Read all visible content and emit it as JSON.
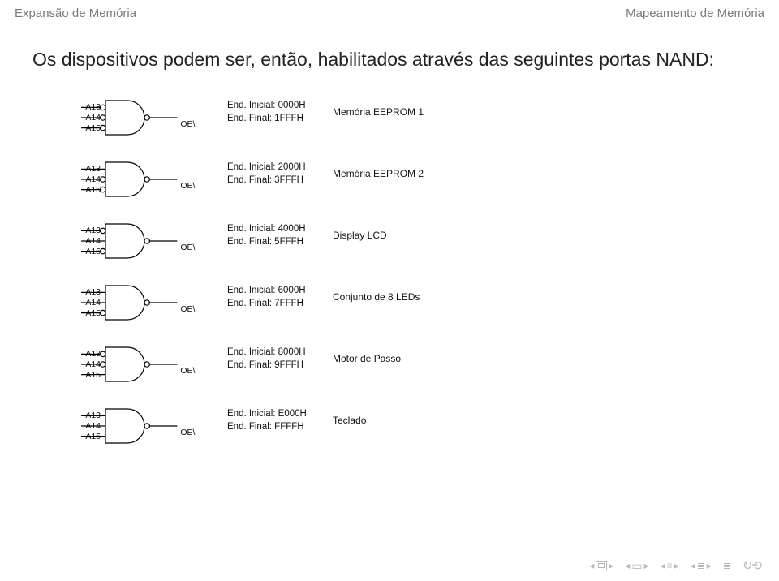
{
  "header": {
    "left": "Expansão de Memória",
    "right": "Mapeamento de Memória",
    "rule_color": "#3b5fa0"
  },
  "intro": "Os dispositivos podem ser, então, habilitados através das seguintes portas NAND:",
  "gate_style": {
    "stroke": "#000000",
    "stroke_width": 1.2,
    "fill": "#ffffff",
    "bubble_radius": 3.2,
    "body_width": 48,
    "body_height": 42,
    "wire_len_in": 30,
    "wire_len_out": 34
  },
  "inputs": [
    "A13",
    "A14",
    "A15"
  ],
  "oe_label": "OE\\",
  "gates": [
    {
      "bubbles": [
        true,
        true,
        true
      ],
      "addr_init": "End. Inicial: 0000H",
      "addr_fin": "End. Final: 1FFFH",
      "name": "Memória EEPROM 1"
    },
    {
      "bubbles": [
        false,
        true,
        true
      ],
      "addr_init": "End. Inicial: 2000H",
      "addr_fin": "End. Final: 3FFFH",
      "name": "Memória EEPROM 2"
    },
    {
      "bubbles": [
        true,
        false,
        true
      ],
      "addr_init": "End. Inicial: 4000H",
      "addr_fin": "End. Final: 5FFFH",
      "name": "Display LCD"
    },
    {
      "bubbles": [
        false,
        false,
        true
      ],
      "addr_init": "End. Inicial: 6000H",
      "addr_fin": "End. Final: 7FFFH",
      "name": "Conjunto de 8 LEDs"
    },
    {
      "bubbles": [
        true,
        true,
        false
      ],
      "addr_init": "End. Inicial: 8000H",
      "addr_fin": "End. Final: 9FFFH",
      "name": "Motor de Passo"
    },
    {
      "bubbles": [
        false,
        false,
        false
      ],
      "addr_init": "End. Inicial: E000H",
      "addr_fin": "End. Final: FFFFH",
      "name": "Teclado"
    }
  ],
  "footer_nav": {
    "color": "#b8b8b8",
    "items": [
      "slide",
      "frame",
      "subsect",
      "sect"
    ]
  }
}
